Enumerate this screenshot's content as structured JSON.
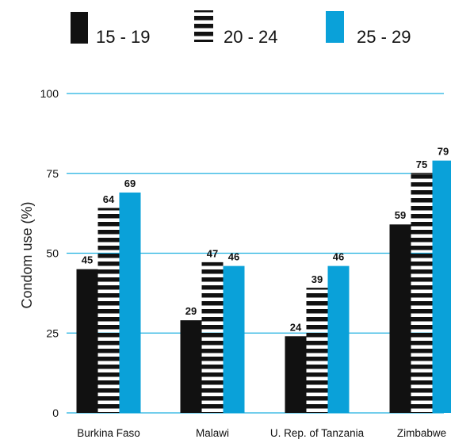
{
  "chart_data": {
    "type": "bar",
    "ylabel": "Condom use (%)",
    "xlabel": "",
    "ylim": [
      0,
      100
    ],
    "yticks": [
      0,
      25,
      50,
      75,
      100
    ],
    "grid": true,
    "legend_position": "top",
    "categories": [
      "Burkina Faso",
      "Malawi",
      "U. Rep. of Tanzania",
      "Zimbabwe"
    ],
    "series": [
      {
        "name": "15 - 19",
        "values": [
          45,
          29,
          24,
          59
        ],
        "style": "solid",
        "color": "#111111"
      },
      {
        "name": "20 - 24",
        "values": [
          64,
          47,
          39,
          75
        ],
        "style": "striped",
        "color": "#111111"
      },
      {
        "name": "25 - 29",
        "values": [
          69,
          46,
          46,
          79
        ],
        "style": "solid",
        "color": "#0aa1d9"
      }
    ],
    "gridline_color": "#1fb1e0"
  }
}
